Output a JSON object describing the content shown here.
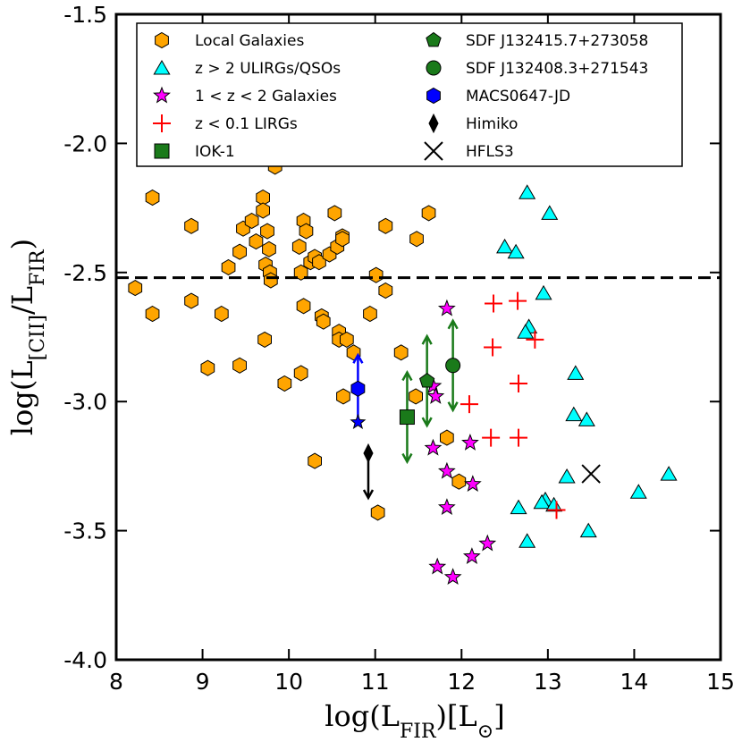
{
  "chart_data": {
    "type": "scatter",
    "xlabel": "log(L_FIR)[L_⊙]",
    "ylabel": "log(L_[CII]/L_FIR)",
    "xlim": [
      8,
      15
    ],
    "ylim": [
      -4.0,
      -1.5
    ],
    "xticks": [
      8,
      9,
      10,
      11,
      12,
      13,
      14,
      15
    ],
    "yticks": [
      -4.0,
      -3.5,
      -3.0,
      -2.5,
      -2.0,
      -1.5
    ],
    "xtick_labels": [
      "8",
      "9",
      "10",
      "11",
      "12",
      "13",
      "14",
      "15"
    ],
    "ytick_labels": [
      "-4.0",
      "-3.5",
      "-3.0",
      "-2.5",
      "-2.0",
      "-1.5"
    ],
    "reference_line": {
      "y": -2.52,
      "style": "dashed"
    },
    "legend": {
      "location": "top",
      "entries": [
        {
          "label": "Local Galaxies",
          "marker": "hexagon",
          "color": "#FFA500"
        },
        {
          "label": "z > 2 ULIRGs/QSOs",
          "marker": "triangle",
          "color": "#00FFFF"
        },
        {
          "label": "1 < z < 2 Galaxies",
          "marker": "star",
          "color": "#FF00FF"
        },
        {
          "label": "z < 0.1 LIRGs",
          "marker": "plus",
          "color": "#FF0000"
        },
        {
          "label": "IOK-1",
          "marker": "square",
          "color": "#1A7A1A"
        },
        {
          "label": "SDF J132415.7+273058",
          "marker": "pentagon",
          "color": "#1A7A1A"
        },
        {
          "label": "SDF J132408.3+271543",
          "marker": "circle",
          "color": "#1A7A1A"
        },
        {
          "label": "MACS0647-JD",
          "marker": "hexagon",
          "color": "#0000FF"
        },
        {
          "label": "Himiko",
          "marker": "diamond",
          "color": "#000000"
        },
        {
          "label": "HFLS3",
          "marker": "x",
          "color": "#000000"
        }
      ]
    },
    "series": [
      {
        "name": "Local Galaxies",
        "marker": "hexagon",
        "color": "#FFA500",
        "points": [
          [
            8.42,
            -2.21
          ],
          [
            8.22,
            -2.56
          ],
          [
            8.42,
            -2.66
          ],
          [
            8.87,
            -2.32
          ],
          [
            8.87,
            -2.61
          ],
          [
            9.06,
            -2.87
          ],
          [
            9.22,
            -2.66
          ],
          [
            9.3,
            -2.48
          ],
          [
            9.43,
            -2.42
          ],
          [
            9.43,
            -2.86
          ],
          [
            9.47,
            -2.33
          ],
          [
            9.57,
            -2.3
          ],
          [
            9.62,
            -2.38
          ],
          [
            9.7,
            -2.21
          ],
          [
            9.7,
            -2.26
          ],
          [
            9.72,
            -2.76
          ],
          [
            9.73,
            -2.47
          ],
          [
            9.75,
            -2.34
          ],
          [
            9.77,
            -2.41
          ],
          [
            9.78,
            -2.5
          ],
          [
            9.79,
            -2.53
          ],
          [
            9.84,
            -2.09
          ],
          [
            9.95,
            -2.93
          ],
          [
            10.12,
            -2.4
          ],
          [
            10.14,
            -2.5
          ],
          [
            10.14,
            -2.89
          ],
          [
            10.17,
            -2.3
          ],
          [
            10.17,
            -2.63
          ],
          [
            10.2,
            -2.34
          ],
          [
            10.25,
            -2.46
          ],
          [
            10.3,
            -2.44
          ],
          [
            10.3,
            -3.23
          ],
          [
            10.35,
            -2.46
          ],
          [
            10.38,
            -2.67
          ],
          [
            10.4,
            -2.69
          ],
          [
            10.47,
            -2.43
          ],
          [
            10.53,
            -2.27
          ],
          [
            10.56,
            -2.4
          ],
          [
            10.58,
            -2.73
          ],
          [
            10.58,
            -2.76
          ],
          [
            10.62,
            -2.36
          ],
          [
            10.62,
            -2.37
          ],
          [
            10.63,
            -2.98
          ],
          [
            10.67,
            -2.76
          ],
          [
            10.75,
            -2.81
          ],
          [
            10.94,
            -2.66
          ],
          [
            11.01,
            -2.51
          ],
          [
            11.03,
            -3.43
          ],
          [
            11.12,
            -2.32
          ],
          [
            11.12,
            -2.57
          ],
          [
            11.3,
            -2.81
          ],
          [
            11.47,
            -2.98
          ],
          [
            11.48,
            -2.37
          ],
          [
            11.62,
            -2.27
          ],
          [
            11.83,
            -3.14
          ],
          [
            11.97,
            -3.31
          ]
        ]
      },
      {
        "name": "z > 2 ULIRGs/QSOs",
        "marker": "triangle",
        "color": "#00FFFF",
        "points": [
          [
            12.76,
            -2.19
          ],
          [
            13.02,
            -2.27
          ],
          [
            12.5,
            -2.4
          ],
          [
            12.63,
            -2.42
          ],
          [
            12.95,
            -2.58
          ],
          [
            12.78,
            -2.71
          ],
          [
            12.74,
            -2.73
          ],
          [
            13.32,
            -2.89
          ],
          [
            13.3,
            -3.05
          ],
          [
            13.45,
            -3.07
          ],
          [
            13.22,
            -3.29
          ],
          [
            12.97,
            -3.38
          ],
          [
            12.93,
            -3.39
          ],
          [
            13.07,
            -3.4
          ],
          [
            12.66,
            -3.41
          ],
          [
            12.76,
            -3.54
          ],
          [
            13.47,
            -3.5
          ],
          [
            14.05,
            -3.35
          ],
          [
            14.4,
            -3.28
          ]
        ]
      },
      {
        "name": "1 < z < 2 Galaxies",
        "marker": "star",
        "color": "#FF00FF",
        "points": [
          [
            11.83,
            -2.64
          ],
          [
            11.67,
            -2.94
          ],
          [
            11.7,
            -2.98
          ],
          [
            11.67,
            -3.18
          ],
          [
            11.83,
            -3.27
          ],
          [
            11.83,
            -3.41
          ],
          [
            12.1,
            -3.16
          ],
          [
            12.13,
            -3.32
          ],
          [
            11.72,
            -3.64
          ],
          [
            11.9,
            -3.68
          ],
          [
            12.12,
            -3.6
          ],
          [
            12.3,
            -3.55
          ]
        ]
      },
      {
        "name": "z < 0.1 LIRGs",
        "marker": "plus",
        "color": "#FF0000",
        "points": [
          [
            12.37,
            -2.62
          ],
          [
            12.65,
            -2.61
          ],
          [
            12.36,
            -2.79
          ],
          [
            12.85,
            -2.76
          ],
          [
            12.66,
            -2.93
          ],
          [
            12.09,
            -3.01
          ],
          [
            12.34,
            -3.14
          ],
          [
            12.66,
            -3.14
          ],
          [
            13.1,
            -3.42
          ]
        ]
      },
      {
        "name": "IOK-1",
        "marker": "square",
        "color": "#1A7A1A",
        "points": [
          [
            11.37,
            -3.06
          ]
        ],
        "arrows": [
          "down-up"
        ]
      },
      {
        "name": "SDF J132415.7+273058",
        "marker": "pentagon",
        "color": "#1A7A1A",
        "points": [
          [
            11.6,
            -2.92
          ]
        ],
        "arrows": [
          "down-up"
        ]
      },
      {
        "name": "SDF J132408.3+271543",
        "marker": "circle",
        "color": "#1A7A1A",
        "points": [
          [
            11.9,
            -2.86
          ]
        ],
        "arrows": [
          "down-up"
        ]
      },
      {
        "name": "MACS0647-JD",
        "marker": "hexagon",
        "color": "#0000FF",
        "points": [
          [
            10.8,
            -2.95
          ]
        ],
        "extra_star": [
          10.8,
          -3.08
        ]
      },
      {
        "name": "Himiko",
        "marker": "diamond",
        "color": "#000000",
        "points": [
          [
            10.92,
            -3.2
          ]
        ],
        "arrows": [
          "down"
        ]
      },
      {
        "name": "HFLS3",
        "marker": "x",
        "color": "#000000",
        "points": [
          [
            13.5,
            -3.28
          ]
        ]
      }
    ]
  }
}
